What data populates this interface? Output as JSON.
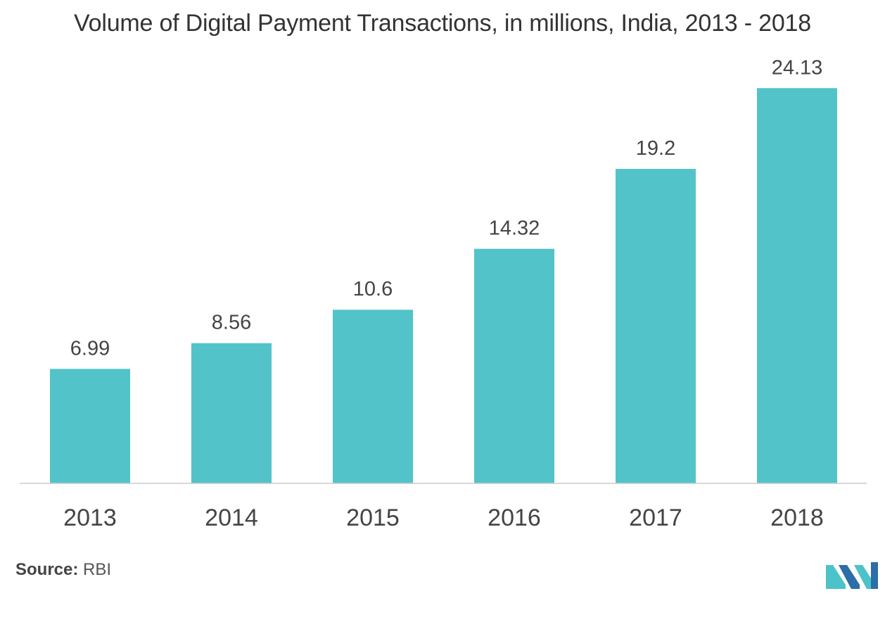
{
  "chart_data": {
    "type": "bar",
    "title": "Volume of Digital Payment Transactions, in millions, India, 2013 - 2018",
    "categories": [
      "2013",
      "2014",
      "2015",
      "2016",
      "2017",
      "2018"
    ],
    "values": [
      6.99,
      8.56,
      10.6,
      14.32,
      19.2,
      24.13
    ],
    "value_labels": [
      "6.99",
      "8.56",
      "10.6",
      "14.32",
      "19.2",
      "24.13"
    ],
    "xlabel": "",
    "ylabel": "",
    "ylim": [
      0,
      25
    ],
    "grid": false,
    "legend": "none",
    "bar_color": "#52c3c9"
  },
  "source": {
    "label": "Source:",
    "value": "RBI"
  },
  "colors": {
    "bar": "#52c3c9",
    "axis": "#cccccc",
    "logo_dark": "#2b6ea8",
    "logo_light": "#4cc3c9"
  }
}
